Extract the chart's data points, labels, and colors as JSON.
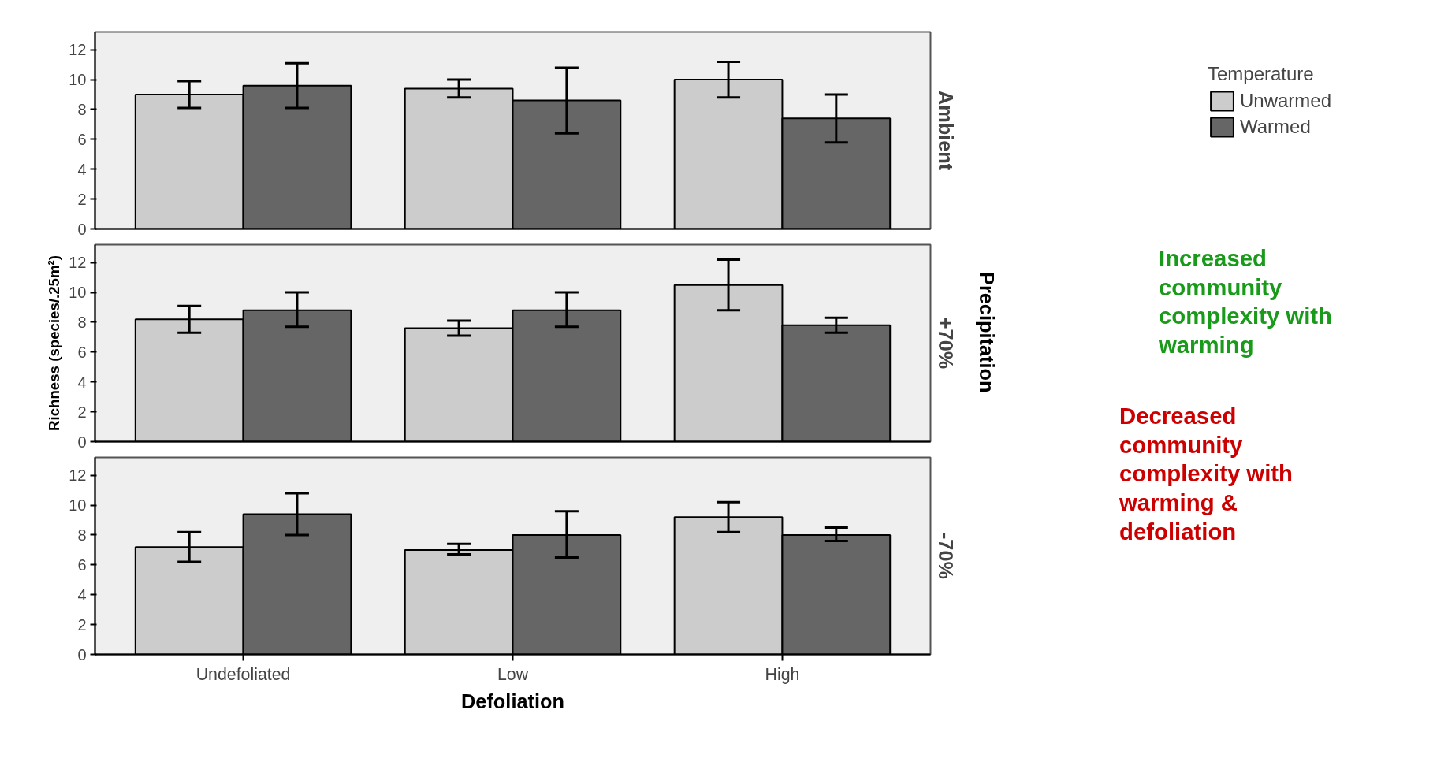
{
  "chart_data": [
    {
      "type": "bar",
      "title": "Ambient",
      "categories": [
        null,
        null,
        null
      ],
      "legend_title": "Temperature",
      "legend": "right",
      "tick_labels": "y",
      "grid": false,
      "ylim": [
        0,
        13.2
      ],
      "yticks": [
        0,
        2,
        4,
        6,
        8,
        10,
        12
      ],
      "series": [
        {
          "name": "Unwarmed",
          "color": "#cccccc",
          "values": [
            9.0,
            9.4,
            10.0
          ],
          "errors": [
            [
              8.1,
              9.9
            ],
            [
              8.8,
              10.0
            ],
            [
              8.8,
              11.2
            ]
          ]
        },
        {
          "name": "Warmed",
          "color": "#666666",
          "values": [
            9.6,
            8.6,
            7.4
          ],
          "errors": [
            [
              8.1,
              11.1
            ],
            [
              6.4,
              10.8
            ],
            [
              5.8,
              9.0
            ]
          ]
        }
      ]
    },
    {
      "type": "bar",
      "title": "+70%",
      "ylabel": "Richness (species/.25m²)",
      "categories": [
        null,
        null,
        null
      ],
      "tick_labels": "y",
      "grid": false,
      "ylim": [
        0,
        13.2
      ],
      "yticks": [
        0,
        2,
        4,
        6,
        8,
        10,
        12
      ],
      "annotations": [
        "Precipitation",
        "Increased community complexity with warming"
      ],
      "series": [
        {
          "color": "#cccccc",
          "values": [
            8.2,
            7.6,
            10.5
          ],
          "errors": [
            [
              7.3,
              9.1
            ],
            [
              7.1,
              8.1
            ],
            [
              8.8,
              12.2
            ]
          ]
        },
        {
          "color": "#666666",
          "values": [
            8.8,
            8.8,
            7.8
          ],
          "errors": [
            [
              7.7,
              10.0
            ],
            [
              7.7,
              10.0
            ],
            [
              7.3,
              8.3
            ]
          ]
        }
      ]
    },
    {
      "type": "bar",
      "title": "-70%",
      "xlabel": "Defoliation",
      "categories": [
        "Undefoliated",
        "Low",
        "High"
      ],
      "grid": false,
      "ylim": [
        0,
        13.2
      ],
      "yticks": [
        0,
        2,
        4,
        6,
        8,
        10,
        12
      ],
      "annotations": [
        "Decreased community complexity with warming & defoliation"
      ],
      "series": [
        {
          "color": "#cccccc",
          "values": [
            7.2,
            7.0,
            9.2
          ],
          "errors": [
            [
              6.2,
              8.2
            ],
            [
              6.7,
              7.4
            ],
            [
              8.2,
              10.2
            ]
          ]
        },
        {
          "color": "#666666",
          "values": [
            9.4,
            8.0,
            8.0
          ],
          "errors": [
            [
              8.0,
              10.8
            ],
            [
              6.5,
              9.6
            ],
            [
              7.6,
              8.5
            ]
          ]
        }
      ]
    }
  ]
}
